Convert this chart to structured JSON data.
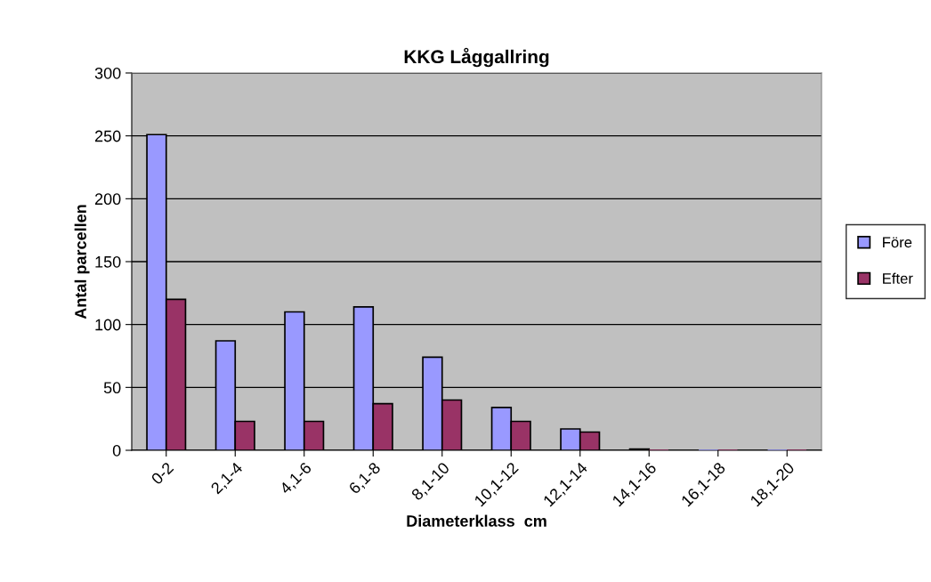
{
  "chart_data": {
    "type": "bar",
    "title": "KKG Låggallring",
    "xlabel": "Diameterklass  cm",
    "ylabel": "Antal parcellen",
    "categories": [
      "0-2",
      "2,1-4",
      "4,1-6",
      "6,1-8",
      "8,1-10",
      "10,1-12",
      "12,1-14",
      "14,1-16",
      "16,1-18",
      "18,1-20"
    ],
    "series": [
      {
        "name": "Före",
        "color": "#9999ff",
        "values": [
          251,
          87,
          110,
          114,
          74,
          34,
          17,
          1,
          0,
          0
        ]
      },
      {
        "name": "Efter",
        "color": "#993366",
        "values": [
          120,
          23,
          23,
          37,
          40,
          23,
          14.5,
          0,
          0,
          0
        ]
      }
    ],
    "ylim": [
      0,
      300
    ],
    "yticks": [
      0,
      50,
      100,
      150,
      200,
      250,
      300
    ],
    "grid": "y",
    "legend": "right"
  }
}
